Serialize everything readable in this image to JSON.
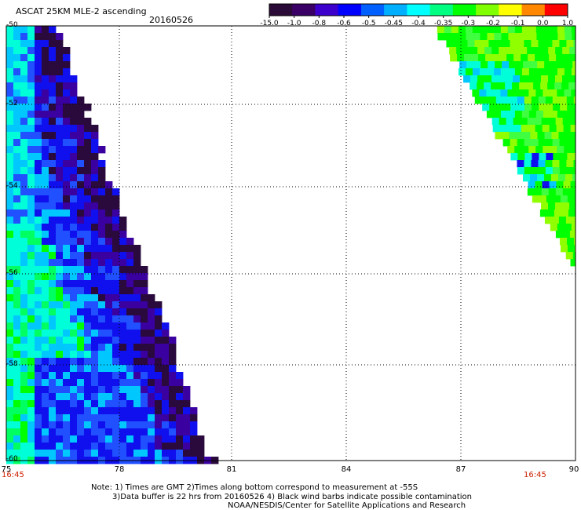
{
  "header": {
    "title": "ASCAT 25KM MLE-2 ascending",
    "date": "20160526"
  },
  "colorbar": {
    "labels": [
      "-15.0",
      "-1.0",
      "-0.8",
      "-0.6",
      "-0.5",
      "-0.45",
      "-0.4",
      "-0.35",
      "-0.3",
      "-0.2",
      "-0.1",
      "0.0",
      "1.0"
    ],
    "colors": [
      "#2a0a36",
      "#3a0066",
      "#3d00cc",
      "#0000ff",
      "#0060ff",
      "#00b0ff",
      "#00ffff",
      "#00ff80",
      "#00ff00",
      "#80ff00",
      "#ffff00",
      "#ff8800",
      "#ff0000"
    ]
  },
  "axes": {
    "y_ticks": [
      "-50",
      "-52",
      "-54",
      "-56",
      "-58",
      "-60"
    ],
    "x_ticks": [
      "75",
      "78",
      "81",
      "84",
      "87",
      "90"
    ],
    "times": [
      "16:45",
      "16:45"
    ]
  },
  "notes": {
    "line1": "Note: 1) Times are GMT 2)Times along bottom correspond to measurement at -55S",
    "line2": "3)Data buffer is 22 hrs from 20160526 4) Black wind barbs indicate possible contamination",
    "line3": "NOAA/NESDIS/Center for Satellite Applications and Research"
  }
}
